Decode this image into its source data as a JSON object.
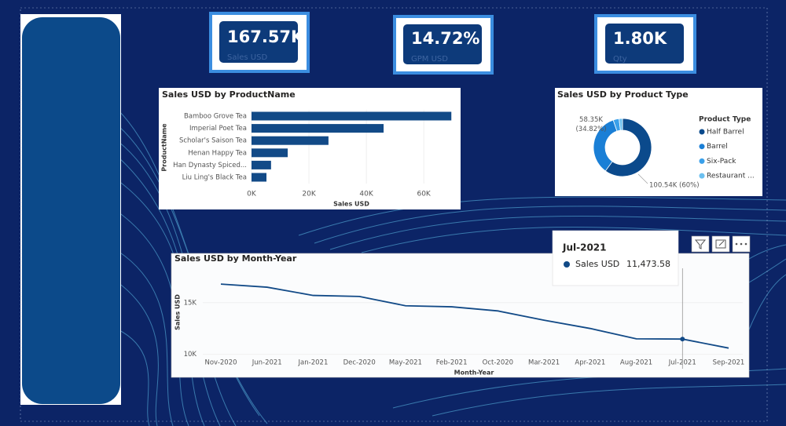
{
  "kpis": [
    {
      "value": "167.57K",
      "label": "Sales USD"
    },
    {
      "value": "14.72%",
      "label": "GPM USD"
    },
    {
      "value": "1.80K",
      "label": "Qty"
    }
  ],
  "chart_data": [
    {
      "type": "hbar",
      "title": "Sales USD by ProductName",
      "y_label": "ProductName",
      "x_label": "Sales USD",
      "categories": [
        "Bamboo Grove Tea",
        "Imperial Poet Tea",
        "Scholar's Saison Tea",
        "Henan Happy Tea",
        "Han Dynasty Spiced...",
        "Liu Ling's Black Tea"
      ],
      "values": [
        69600,
        46000,
        26800,
        12600,
        6800,
        5200
      ],
      "color": "#124a87",
      "xlim": [
        0,
        72000
      ],
      "xticks": [
        {
          "value": 0,
          "label": "0K"
        },
        {
          "value": 20000,
          "label": "20K"
        },
        {
          "value": 40000,
          "label": "40K"
        },
        {
          "value": 60000,
          "label": "60K"
        }
      ]
    },
    {
      "type": "donut",
      "title": "Sales USD by Product Type",
      "legend_title": "Product Type",
      "categories": [
        "Half Barrel",
        "Barrel",
        "Six-Pack",
        "Restaurant ..."
      ],
      "values": [
        100540,
        58350,
        5500,
        3180
      ],
      "value_labels": [
        "100.54K (60%)",
        "58.35K (34.82%)",
        null,
        null
      ],
      "colors": [
        "#0b4a8c",
        "#1a7fd6",
        "#3aa0ea",
        "#6cc0f0"
      ]
    },
    {
      "type": "line",
      "title": "Sales USD by Month-Year",
      "y_label": "Sales USD",
      "x_label": "Month-Year",
      "categories": [
        "Nov-2020",
        "Jun-2021",
        "Jan-2021",
        "Dec-2020",
        "May-2021",
        "Feb-2021",
        "Oct-2020",
        "Mar-2021",
        "Apr-2021",
        "Aug-2021",
        "Jul-2021",
        "Sep-2021"
      ],
      "series": [
        {
          "name": "Sales USD",
          "color": "#124a87",
          "values": [
            16800,
            16500,
            15700,
            15600,
            14700,
            14600,
            14200,
            13300,
            12500,
            11500,
            11473.58,
            10600
          ],
          "value_labels": [
            null,
            null,
            null,
            null,
            null,
            null,
            null,
            null,
            null,
            null,
            "11,473.58",
            null
          ]
        }
      ],
      "ylim": [
        8600,
        18100
      ],
      "yticks": [
        {
          "value": 10000,
          "label": "10K"
        },
        {
          "value": 15000,
          "label": "15K"
        }
      ],
      "tooltip_index": 10
    }
  ]
}
